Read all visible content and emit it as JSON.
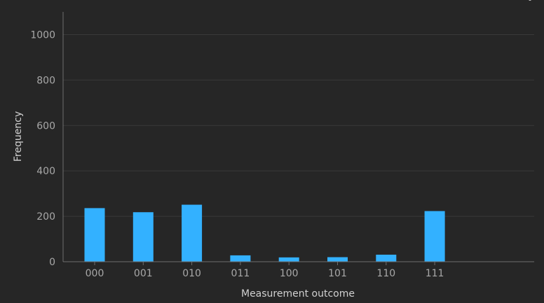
{
  "chart_data": {
    "type": "bar",
    "categories": [
      "000",
      "001",
      "010",
      "011",
      "100",
      "101",
      "110",
      "111"
    ],
    "values": [
      236,
      218,
      251,
      28,
      19,
      20,
      31,
      223
    ],
    "xlabel": "Measurement outcome",
    "ylabel": "Frequency",
    "ylim": [
      0,
      1100
    ],
    "yticks": [
      0,
      200,
      400,
      600,
      800,
      1000
    ],
    "grid": true,
    "bar_color": "#33b1ff",
    "grid_color": "#393939",
    "axis_color": "#6f6f6f",
    "background": "#262626"
  }
}
